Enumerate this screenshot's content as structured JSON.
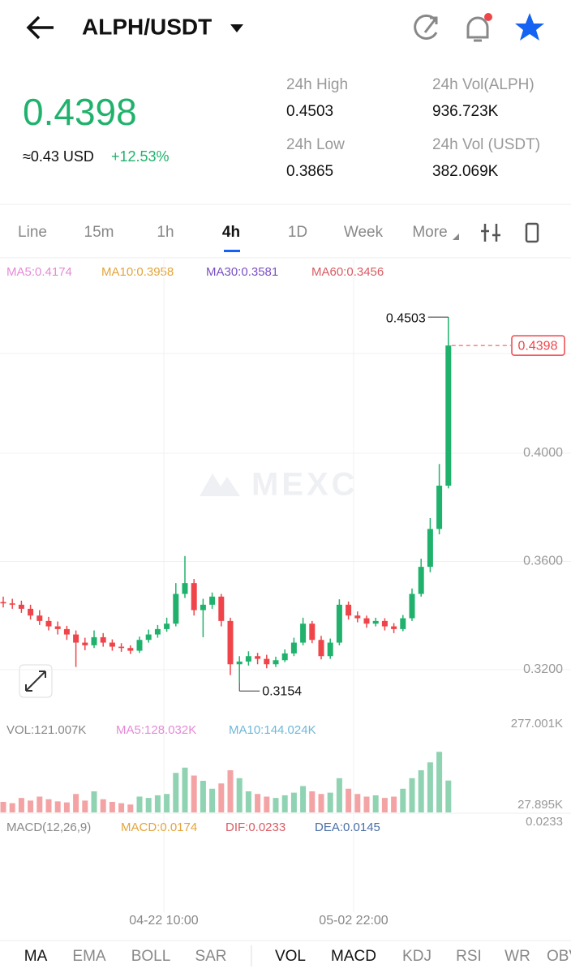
{
  "header": {
    "pair": "ALPH/USDT",
    "price": "0.4398",
    "usd": "≈0.43 USD",
    "change": "+12.53%",
    "stats": [
      {
        "label": "24h High",
        "value": "0.4503"
      },
      {
        "label": "24h Vol(ALPH)",
        "value": "936.723K"
      },
      {
        "label": "24h Low",
        "value": "0.3865"
      },
      {
        "label": "24h Vol (USDT)",
        "value": "382.069K"
      }
    ]
  },
  "tabs": [
    "Line",
    "15m",
    "1h",
    "4h",
    "1D",
    "Week",
    "More"
  ],
  "ma_legend": [
    "MA5:0.4174",
    "MA10:0.3958",
    "MA30:0.3581",
    "MA60:0.3456"
  ],
  "chart_data": {
    "type": "candlestick",
    "watermark": "MEXC",
    "ylim": [
      0.3068,
      0.4686
    ],
    "yticks": [
      {
        "value": 0.4,
        "label": "0.4000"
      },
      {
        "value": 0.36,
        "label": "0.3600"
      },
      {
        "value": 0.32,
        "label": "0.3200"
      }
    ],
    "high_label": "0.4503",
    "low_label": "0.3154",
    "last_label": "0.4398",
    "x_labels": [
      "04-22 10:00",
      "05-02 22:00"
    ],
    "up_color": "#20b26c",
    "down_color": "#ef454a",
    "candles": [
      [
        0.345,
        0.347,
        0.343,
        0.3445
      ],
      [
        0.3445,
        0.3462,
        0.3425,
        0.344
      ],
      [
        0.344,
        0.3455,
        0.341,
        0.3425
      ],
      [
        0.3425,
        0.344,
        0.3385,
        0.34
      ],
      [
        0.34,
        0.342,
        0.3365,
        0.338
      ],
      [
        0.338,
        0.3395,
        0.3345,
        0.336
      ],
      [
        0.336,
        0.3378,
        0.333,
        0.335
      ],
      [
        0.335,
        0.3362,
        0.331,
        0.333
      ],
      [
        0.333,
        0.3345,
        0.321,
        0.33
      ],
      [
        0.33,
        0.3318,
        0.3272,
        0.329
      ],
      [
        0.329,
        0.3345,
        0.328,
        0.332
      ],
      [
        0.332,
        0.3335,
        0.3285,
        0.33
      ],
      [
        0.33,
        0.3312,
        0.327,
        0.3285
      ],
      [
        0.3285,
        0.3298,
        0.3266,
        0.328
      ],
      [
        0.328,
        0.329,
        0.3258,
        0.327
      ],
      [
        0.327,
        0.3322,
        0.3262,
        0.331
      ],
      [
        0.331,
        0.3348,
        0.33,
        0.333
      ],
      [
        0.333,
        0.3365,
        0.3318,
        0.335
      ],
      [
        0.335,
        0.3392,
        0.334,
        0.337
      ],
      [
        0.337,
        0.352,
        0.336,
        0.348
      ],
      [
        0.348,
        0.362,
        0.3465,
        0.352
      ],
      [
        0.352,
        0.3535,
        0.34,
        0.342
      ],
      [
        0.342,
        0.3462,
        0.332,
        0.344
      ],
      [
        0.344,
        0.3485,
        0.3425,
        0.347
      ],
      [
        0.347,
        0.348,
        0.336,
        0.338
      ],
      [
        0.338,
        0.3392,
        0.318,
        0.322
      ],
      [
        0.322,
        0.325,
        0.3154,
        0.323
      ],
      [
        0.323,
        0.3268,
        0.3215,
        0.325
      ],
      [
        0.325,
        0.3262,
        0.322,
        0.324
      ],
      [
        0.324,
        0.3255,
        0.3205,
        0.322
      ],
      [
        0.322,
        0.3248,
        0.321,
        0.3235
      ],
      [
        0.3235,
        0.3275,
        0.3228,
        0.326
      ],
      [
        0.326,
        0.3318,
        0.325,
        0.33
      ],
      [
        0.33,
        0.3392,
        0.329,
        0.337
      ],
      [
        0.337,
        0.338,
        0.3298,
        0.331
      ],
      [
        0.331,
        0.3325,
        0.3238,
        0.325
      ],
      [
        0.325,
        0.3315,
        0.324,
        0.33
      ],
      [
        0.33,
        0.346,
        0.329,
        0.344
      ],
      [
        0.344,
        0.3452,
        0.3385,
        0.34
      ],
      [
        0.34,
        0.3415,
        0.3375,
        0.339
      ],
      [
        0.339,
        0.34,
        0.3355,
        0.337
      ],
      [
        0.337,
        0.3392,
        0.336,
        0.338
      ],
      [
        0.338,
        0.339,
        0.3345,
        0.336
      ],
      [
        0.336,
        0.3372,
        0.3335,
        0.335
      ],
      [
        0.335,
        0.3402,
        0.3342,
        0.339
      ],
      [
        0.339,
        0.35,
        0.338,
        0.348
      ],
      [
        0.348,
        0.361,
        0.347,
        0.358
      ],
      [
        0.358,
        0.376,
        0.356,
        0.372
      ],
      [
        0.372,
        0.396,
        0.37,
        0.388
      ],
      [
        0.388,
        0.4503,
        0.387,
        0.4398
      ]
    ]
  },
  "volume": {
    "legend": [
      "VOL:121.007K",
      "MA5:128.032K",
      "MA10:144.024K"
    ],
    "ylim": [
      0,
      277.001
    ],
    "top_label": "277.001K",
    "bottom_label": "27.895K",
    "values": [
      40,
      35,
      55,
      45,
      60,
      50,
      42,
      38,
      70,
      45,
      80,
      50,
      40,
      35,
      30,
      60,
      55,
      65,
      70,
      150,
      170,
      140,
      120,
      90,
      110,
      160,
      130,
      80,
      70,
      60,
      55,
      65,
      75,
      100,
      80,
      70,
      75,
      130,
      90,
      70,
      60,
      65,
      55,
      60,
      90,
      130,
      160,
      190,
      230,
      121.007
    ]
  },
  "macd": {
    "legend": [
      "MACD(12,26,9)",
      "MACD:0.0174",
      "DIF:0.0233",
      "DEA:0.0145"
    ],
    "top_label": "0.0233"
  },
  "bottom_tabs": [
    "MA",
    "EMA",
    "BOLL",
    "SAR",
    "VOL",
    "MACD",
    "KDJ",
    "RSI",
    "WR",
    "OBV"
  ]
}
